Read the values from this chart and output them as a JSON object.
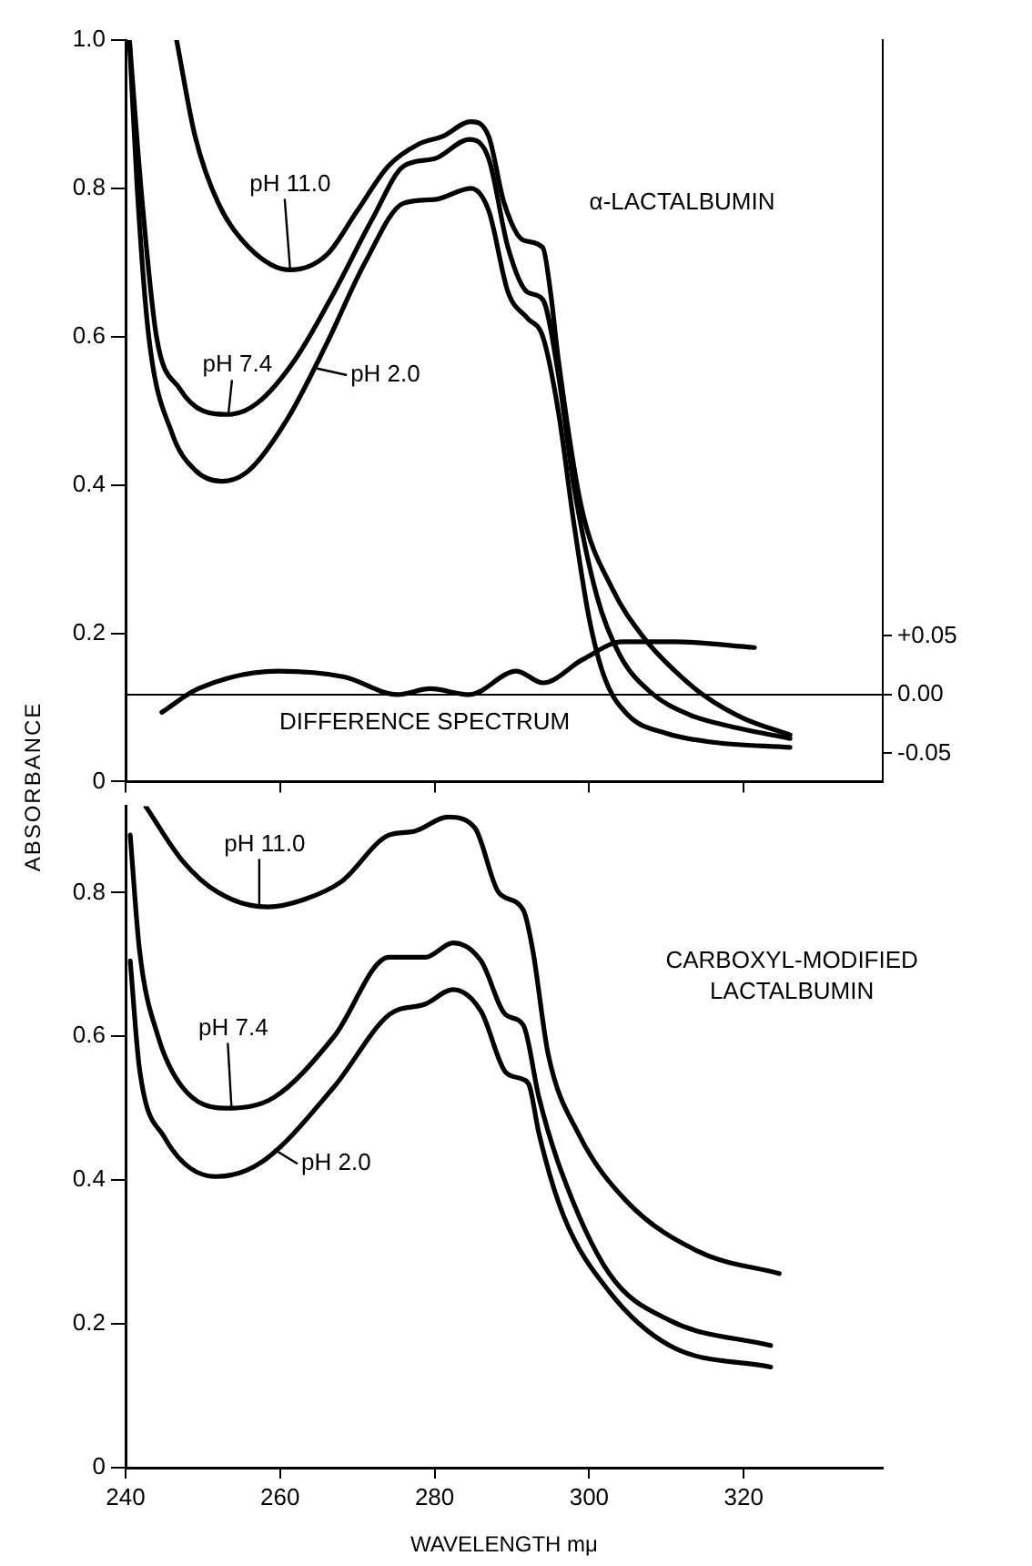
{
  "chart_data": [
    {
      "type": "line",
      "title": "α-LACTALBUMIN",
      "ylabel": "ABSORBANCE",
      "xlim": [
        240,
        338
      ],
      "xticks": [
        240,
        260,
        280,
        300,
        320
      ],
      "ylim": [
        0,
        1.0
      ],
      "yticks": [
        0,
        0.2,
        0.4,
        0.6,
        0.8,
        {
          "value": 1,
          "label": "1.0"
        }
      ],
      "y2lim": [
        -0.074,
        0.557
      ],
      "y2ticks": [
        {
          "value": 0.05,
          "label": "+0.05"
        },
        {
          "value": 0,
          "label": "0.00"
        },
        -0.05
      ],
      "tick_labels": "y",
      "marker": "none",
      "line_style": "solid",
      "ref_lines": [
        {
          "axis": "y2",
          "value": 0,
          "color": "#000000"
        }
      ],
      "series": [
        {
          "name": "pH 11.0",
          "color": "#000000",
          "x": [
            246.6,
            249,
            252,
            256,
            261.3,
            266,
            270,
            274,
            278,
            281,
            284.7,
            287,
            289,
            291.5,
            294,
            295,
            296,
            299,
            303,
            307,
            311,
            315,
            320,
            326
          ],
          "values": [
            1.0,
            0.87,
            0.78,
            0.72,
            0.69,
            0.71,
            0.77,
            0.83,
            0.86,
            0.87,
            0.89,
            0.87,
            0.78,
            0.73,
            0.72,
            0.66,
            0.57,
            0.37,
            0.26,
            0.195,
            0.15,
            0.115,
            0.085,
            0.063
          ]
        },
        {
          "name": "pH 7.4",
          "color": "#000000",
          "x": [
            240.5,
            242,
            244,
            247,
            250,
            253.3,
            257,
            262,
            267,
            272,
            276,
            280,
            284.5,
            287,
            289.5,
            292,
            294,
            296,
            298,
            301,
            304,
            308,
            313,
            318,
            326
          ],
          "values": [
            1.0,
            0.8,
            0.6,
            0.53,
            0.5,
            0.495,
            0.51,
            0.57,
            0.66,
            0.76,
            0.83,
            0.84,
            0.866,
            0.84,
            0.72,
            0.66,
            0.65,
            0.55,
            0.4,
            0.25,
            0.17,
            0.12,
            0.09,
            0.075,
            0.058
          ]
        },
        {
          "name": "pH 2.0",
          "color": "#000000",
          "x": [
            240.5,
            241.5,
            243,
            246,
            249,
            252.5,
            256,
            261,
            266,
            271,
            276,
            280,
            284.7,
            287,
            289.5,
            292,
            294,
            296,
            298,
            300,
            302,
            305,
            310,
            316,
            326
          ],
          "values": [
            1.0,
            0.8,
            0.6,
            0.47,
            0.42,
            0.405,
            0.42,
            0.49,
            0.59,
            0.7,
            0.78,
            0.785,
            0.8,
            0.77,
            0.66,
            0.625,
            0.6,
            0.5,
            0.35,
            0.22,
            0.14,
            0.09,
            0.065,
            0.053,
            0.046
          ]
        },
        {
          "name": "DIFFERENCE SPECTRUM",
          "color": "#000000",
          "axis": "y2",
          "x": [
            244.7,
            249.4,
            259.7,
            268.3,
            275.2,
            279.4,
            284.5,
            290.6,
            294,
            299.2,
            304.3,
            311.1,
            321.4
          ],
          "values": [
            -0.015,
            0.005,
            0.02,
            0.015,
            0.0,
            0.005,
            0.0,
            0.02,
            0.01,
            0.03,
            0.045,
            0.045,
            0.04
          ]
        }
      ]
    },
    {
      "type": "line",
      "title": "CARBOXYL-MODIFIED LACTALBUMIN",
      "xlabel": "WAVELENGTH mμ",
      "xlim": [
        240,
        338
      ],
      "xticks": [
        240,
        260,
        280,
        300,
        320
      ],
      "ylim": [
        0,
        0.92
      ],
      "yticks": [
        0,
        0.2,
        0.4,
        0.6,
        0.8
      ],
      "marker": "none",
      "line_style": "solid",
      "series": [
        {
          "name": "pH 11.0",
          "color": "#000000",
          "x": [
            242.6,
            247.3,
            252,
            258.4,
            263,
            267.9,
            274.1,
            277.3,
            281.7,
            285.2,
            288.3,
            291.5,
            292.7,
            294.7,
            298.6,
            304.9,
            314.3,
            324.6
          ],
          "values": [
            0.92,
            0.845,
            0.8,
            0.78,
            0.79,
            0.815,
            0.88,
            0.885,
            0.905,
            0.89,
            0.8,
            0.775,
            0.72,
            0.575,
            0.465,
            0.37,
            0.3,
            0.27
          ]
        },
        {
          "name": "pH 7.4",
          "color": "#000000",
          "x": [
            240.6,
            241.8,
            244.2,
            247.3,
            252.8,
            259.2,
            267,
            274.1,
            278.8,
            282.4,
            286,
            289.2,
            291.5,
            293.5,
            296.3,
            302.6,
            310.4,
            323.5
          ],
          "values": [
            0.88,
            0.72,
            0.6,
            0.53,
            0.5,
            0.515,
            0.6,
            0.71,
            0.71,
            0.73,
            0.705,
            0.63,
            0.615,
            0.515,
            0.415,
            0.27,
            0.205,
            0.17
          ]
        },
        {
          "name": "pH 2.0",
          "color": "#000000",
          "x": [
            240.6,
            241.8,
            245,
            251.7,
            257.6,
            267,
            274.1,
            278.8,
            282.4,
            286,
            289.2,
            291.5,
            292.3,
            293.5,
            296.7,
            302.6,
            310.4,
            323.5
          ],
          "values": [
            0.705,
            0.555,
            0.46,
            0.405,
            0.425,
            0.53,
            0.63,
            0.645,
            0.665,
            0.635,
            0.55,
            0.54,
            0.53,
            0.465,
            0.35,
            0.245,
            0.17,
            0.14
          ]
        }
      ]
    }
  ]
}
